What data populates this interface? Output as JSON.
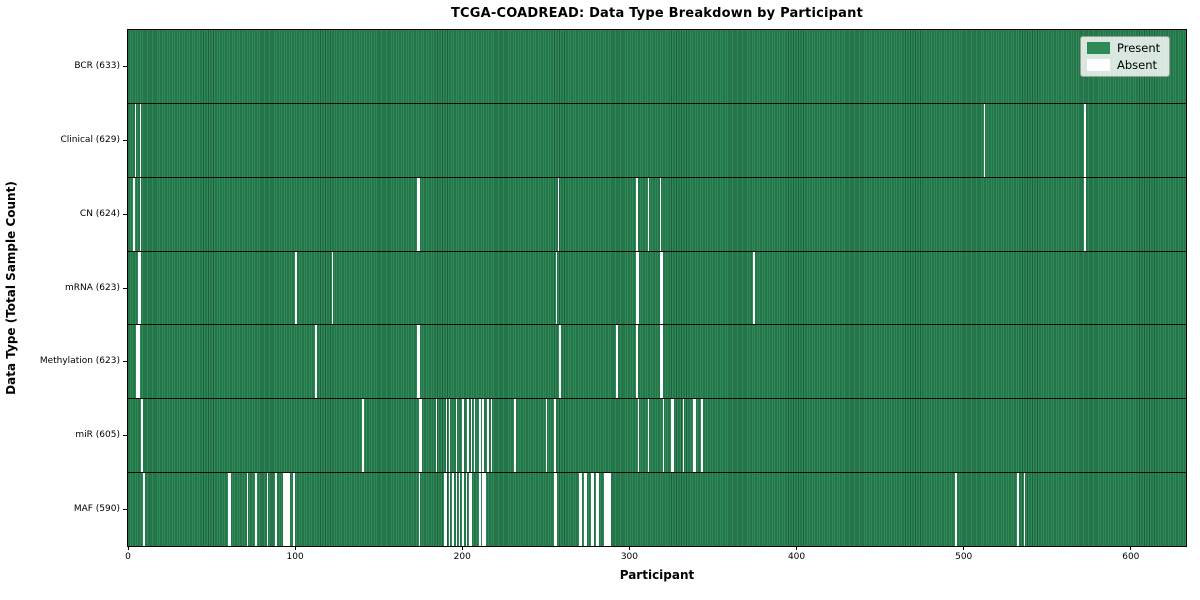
{
  "title": "TCGA-COADREAD: Data Type Breakdown by Participant",
  "xlabel": "Participant",
  "ylabel": "Data Type (Total Sample Count)",
  "legend": {
    "present_label": "Present",
    "absent_label": "Absent"
  },
  "colors": {
    "present": "#2e8b57",
    "present_edge": "#1d5e3c",
    "absent": "#ffffff",
    "legend_bg": "#e3e7e3",
    "legend_border": "#9a9a9a"
  },
  "chart_data": {
    "type": "heatmap",
    "title": "TCGA-COADREAD: Data Type Breakdown by Participant",
    "xlabel": "Participant",
    "ylabel": "Data Type (Total Sample Count)",
    "x_range": [
      0,
      633
    ],
    "x_ticks": [
      0,
      100,
      200,
      300,
      400,
      500,
      600
    ],
    "grid": false,
    "legend_position": "upper right",
    "legend_entries": [
      {
        "label": "Present",
        "color": "#2e8b57"
      },
      {
        "label": "Absent",
        "color": "#ffffff"
      }
    ],
    "value_encoding": "green cell = data present for participant, white cell = absent",
    "rows": [
      {
        "name": "BCR",
        "label": "BCR (633)",
        "total_samples": 633,
        "absent_participants": []
      },
      {
        "name": "Clinical",
        "label": "Clinical (629)",
        "total_samples": 629,
        "absent_participants": [
          4,
          7,
          512,
          572
        ]
      },
      {
        "name": "CN",
        "label": "CN (624)",
        "total_samples": 624,
        "absent_participants": [
          3,
          7,
          173,
          174,
          257,
          304,
          311,
          318,
          572
        ]
      },
      {
        "name": "mRNA",
        "label": "mRNA (623)",
        "total_samples": 623,
        "absent_participants": [
          6,
          7,
          100,
          122,
          256,
          304,
          305,
          318,
          319,
          374
        ]
      },
      {
        "name": "Methylation",
        "label": "Methylation (623)",
        "total_samples": 623,
        "absent_participants": [
          5,
          6,
          112,
          173,
          174,
          258,
          292,
          304,
          318,
          319
        ]
      },
      {
        "name": "miR",
        "label": "miR (605)",
        "total_samples": 605,
        "absent_participants": [
          8,
          140,
          174,
          175,
          184,
          190,
          192,
          196,
          200,
          203,
          205,
          207,
          210,
          212,
          215,
          217,
          231,
          250,
          255,
          305,
          311,
          320,
          325,
          326,
          332,
          338,
          339,
          343
        ]
      },
      {
        "name": "MAF",
        "label": "MAF (590)",
        "total_samples": 590,
        "absent_participants": [
          9,
          60,
          61,
          71,
          76,
          83,
          88,
          93,
          94,
          95,
          96,
          99,
          174,
          189,
          190,
          192,
          194,
          196,
          198,
          200,
          202,
          204,
          205,
          210,
          212,
          213,
          255,
          256,
          270,
          271,
          273,
          274,
          277,
          278,
          280,
          281,
          285,
          286,
          287,
          288,
          495,
          532,
          536
        ]
      }
    ]
  }
}
